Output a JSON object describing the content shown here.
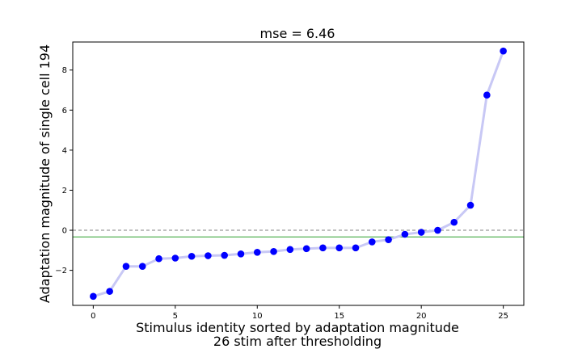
{
  "chart_data": {
    "type": "line",
    "title": "mse = 6.46",
    "xlabel_line1": "Stimulus identity sorted by adaptation magnitude",
    "xlabel_line2": "26 stim after thresholding",
    "ylabel": "Adaptation magnitude of single cell 194",
    "xlim": [
      -1.25,
      26.25
    ],
    "ylim": [
      -3.75,
      9.4
    ],
    "xticks": [
      0,
      5,
      10,
      15,
      20,
      25
    ],
    "yticks": [
      -2,
      0,
      2,
      4,
      6,
      8
    ],
    "grid": false,
    "series": [
      {
        "x": [
          0,
          1,
          2,
          3,
          4,
          5,
          6,
          7,
          8,
          9,
          10,
          11,
          12,
          13,
          14,
          15,
          16,
          17,
          18,
          19,
          20,
          21,
          22,
          23,
          24,
          25
        ],
        "values": [
          -3.3,
          -3.05,
          -1.8,
          -1.8,
          -1.42,
          -1.39,
          -1.3,
          -1.27,
          -1.25,
          -1.18,
          -1.1,
          -1.06,
          -0.96,
          -0.92,
          -0.88,
          -0.88,
          -0.88,
          -0.58,
          -0.47,
          -0.2,
          -0.1,
          0.0,
          0.4,
          1.25,
          6.75,
          8.95
        ],
        "marker_color": "#0000ff",
        "line_color": "#c8c8f5"
      }
    ],
    "reference_lines": [
      {
        "y": 0,
        "style": "dashed",
        "color": "#808080"
      },
      {
        "y": -0.33,
        "style": "solid",
        "color": "#2ca02c"
      }
    ]
  }
}
